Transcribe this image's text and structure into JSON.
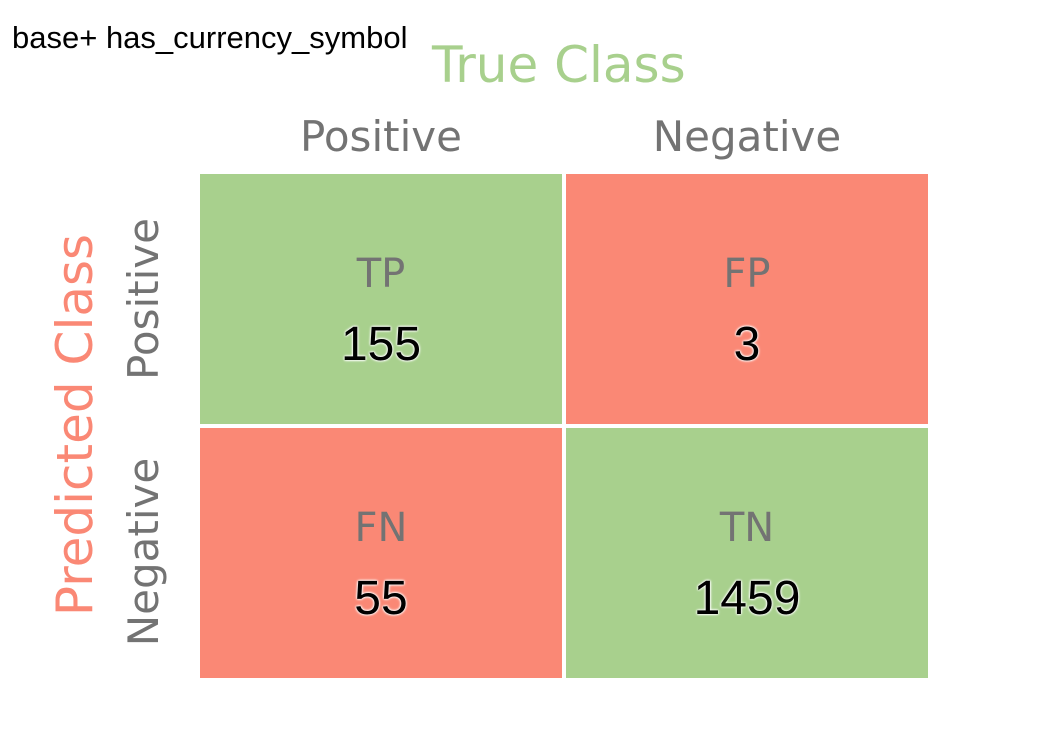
{
  "title": "base+ has_currency_symbol",
  "chart_data": {
    "type": "heatmap",
    "true_axis_label": "True Class",
    "predicted_axis_label": "Predicted Class",
    "columns": [
      "Positive",
      "Negative"
    ],
    "rows": [
      "Positive",
      "Negative"
    ],
    "cells": [
      [
        {
          "label": "TP",
          "value": 155
        },
        {
          "label": "FP",
          "value": 3
        }
      ],
      [
        {
          "label": "FN",
          "value": 55
        },
        {
          "label": "TN",
          "value": 1459
        }
      ]
    ]
  },
  "colors": {
    "correct": "#a8d08d",
    "incorrect": "#fa8875",
    "true_axis_label": "#a8d08d",
    "predicted_axis_label": "#fa8875",
    "axis_text": "#737373",
    "value_text": "#000000"
  }
}
